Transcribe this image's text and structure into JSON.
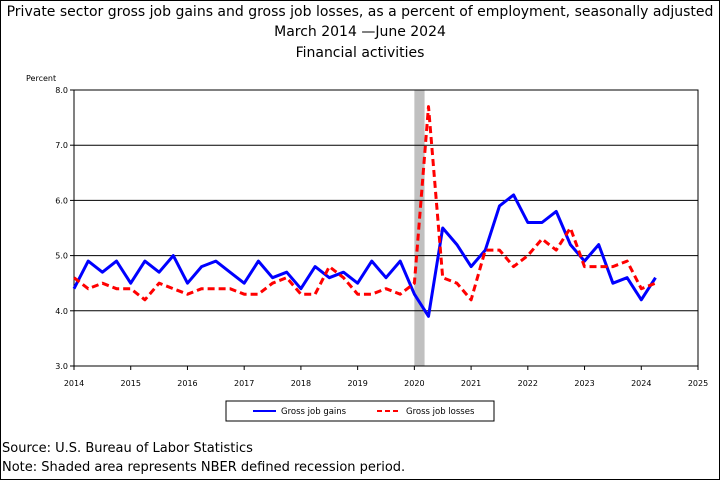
{
  "chart_data": {
    "type": "line",
    "title": "Private sector gross job gains and gross job losses, as a percent of employment, seasonally adjusted",
    "date_range": "March 2014 —June 2024",
    "subtitle": "Financial activities",
    "ylabel": "Percent",
    "ylim": [
      3.0,
      8.0
    ],
    "xlim": [
      2014,
      2025
    ],
    "y_ticks": [
      "3.0",
      "4.0",
      "5.0",
      "6.0",
      "7.0",
      "8.0"
    ],
    "x_ticks": [
      "2014",
      "2015",
      "2016",
      "2017",
      "2018",
      "2019",
      "2020",
      "2021",
      "2022",
      "2023",
      "2024",
      "2025"
    ],
    "grid": "horizontal",
    "legend": "bottom",
    "recession": {
      "start": 2020.0,
      "end": 2020.18
    },
    "x": [
      2014.0,
      2014.25,
      2014.5,
      2014.75,
      2015.0,
      2015.25,
      2015.5,
      2015.75,
      2016.0,
      2016.25,
      2016.5,
      2016.75,
      2017.0,
      2017.25,
      2017.5,
      2017.75,
      2018.0,
      2018.25,
      2018.5,
      2018.75,
      2019.0,
      2019.25,
      2019.5,
      2019.75,
      2020.0,
      2020.25,
      2020.5,
      2020.75,
      2021.0,
      2021.25,
      2021.5,
      2021.75,
      2022.0,
      2022.25,
      2022.5,
      2022.75,
      2023.0,
      2023.25,
      2023.5,
      2023.75,
      2024.0,
      2024.25
    ],
    "series": [
      {
        "name": "Gross job gains",
        "color": "#0000ff",
        "style": "solid",
        "values": [
          4.4,
          4.9,
          4.7,
          4.9,
          4.5,
          4.9,
          4.7,
          5.0,
          4.5,
          4.8,
          4.9,
          4.7,
          4.5,
          4.9,
          4.6,
          4.7,
          4.4,
          4.8,
          4.6,
          4.7,
          4.5,
          4.9,
          4.6,
          4.9,
          4.3,
          3.9,
          5.5,
          5.2,
          4.8,
          5.1,
          5.9,
          6.1,
          5.6,
          5.6,
          5.8,
          5.2,
          4.9,
          5.2,
          4.5,
          4.6,
          4.2,
          4.6
        ]
      },
      {
        "name": "Gross job losses",
        "color": "#ff0000",
        "style": "dashed",
        "values": [
          4.6,
          4.4,
          4.5,
          4.4,
          4.4,
          4.2,
          4.5,
          4.4,
          4.3,
          4.4,
          4.4,
          4.4,
          4.3,
          4.3,
          4.5,
          4.6,
          4.3,
          4.3,
          4.8,
          4.6,
          4.3,
          4.3,
          4.4,
          4.3,
          4.5,
          7.7,
          4.6,
          4.5,
          4.2,
          5.1,
          5.1,
          4.8,
          5.0,
          5.3,
          5.1,
          5.5,
          4.8,
          4.8,
          4.8,
          4.9,
          4.4,
          4.5
        ]
      }
    ]
  },
  "footer": {
    "source": "Source: U.S. Bureau of Labor Statistics",
    "note": "Note: Shaded area represents NBER defined recession period."
  }
}
